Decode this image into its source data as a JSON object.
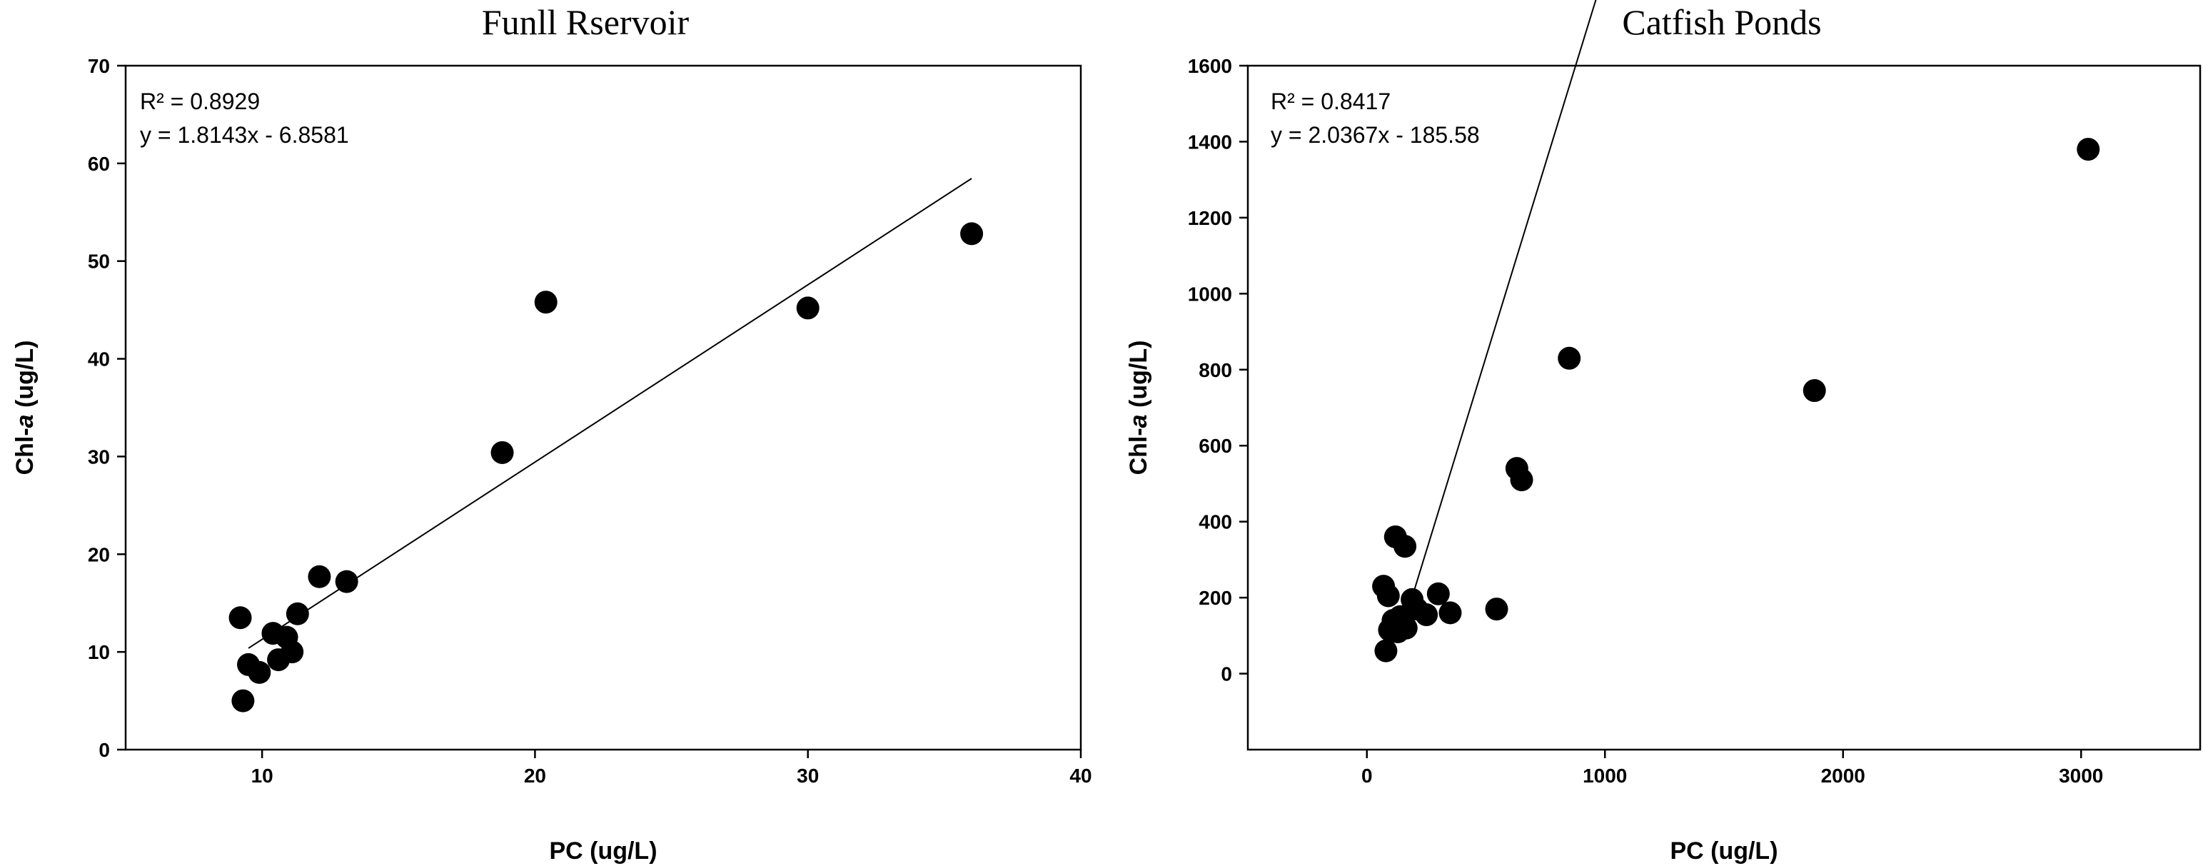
{
  "chart_data": [
    {
      "type": "scatter",
      "title": "Funll Rservoir",
      "xlabel": "PC (ug/L)",
      "ylabel_prefix": "Chl-",
      "ylabel_italic": "a",
      "ylabel_suffix": " (ug/L)",
      "xlim": [
        5,
        40
      ],
      "ylim": [
        0,
        70
      ],
      "xticks": [
        10,
        20,
        30,
        40
      ],
      "yticks": [
        0,
        10,
        20,
        30,
        40,
        50,
        60,
        70
      ],
      "grid": false,
      "annotations": [
        "R² = 0.8929",
        "y = 1.8143x - 6.8581"
      ],
      "trendline": {
        "slope": 1.8143,
        "intercept": -6.8581,
        "x_range": [
          9.5,
          36
        ]
      },
      "points": [
        {
          "x": 9.2,
          "y": 13.5
        },
        {
          "x": 9.3,
          "y": 5.0
        },
        {
          "x": 9.5,
          "y": 8.7
        },
        {
          "x": 9.9,
          "y": 7.9
        },
        {
          "x": 10.4,
          "y": 11.9
        },
        {
          "x": 10.6,
          "y": 9.2
        },
        {
          "x": 10.9,
          "y": 11.5
        },
        {
          "x": 11.1,
          "y": 10.0
        },
        {
          "x": 11.3,
          "y": 13.9
        },
        {
          "x": 12.1,
          "y": 17.7
        },
        {
          "x": 13.1,
          "y": 17.2
        },
        {
          "x": 18.8,
          "y": 30.4
        },
        {
          "x": 20.4,
          "y": 45.8
        },
        {
          "x": 30.0,
          "y": 45.2
        },
        {
          "x": 36.0,
          "y": 52.8
        }
      ]
    },
    {
      "type": "scatter",
      "title": "Catfish Ponds",
      "xlabel": "PC (ug/L)",
      "ylabel_prefix": "Chl-",
      "ylabel_italic": "a",
      "ylabel_suffix": " (ug/L)",
      "xlim": [
        -500,
        3500
      ],
      "ylim": [
        -200,
        1600
      ],
      "xticks": [
        0,
        1000,
        2000,
        3000
      ],
      "yticks": [
        0,
        200,
        400,
        600,
        800,
        1000,
        1200,
        1400,
        1600
      ],
      "grid": false,
      "annotations": [
        "R² = 0.8417",
        "y = 2.0367x - 185.58"
      ],
      "trendline": {
        "slope": 2.0367,
        "intercept": -185.58,
        "x_range": [
          200,
          3020
        ]
      },
      "points": [
        {
          "x": 70,
          "y": 230
        },
        {
          "x": 80,
          "y": 60
        },
        {
          "x": 90,
          "y": 205
        },
        {
          "x": 95,
          "y": 115
        },
        {
          "x": 110,
          "y": 140
        },
        {
          "x": 120,
          "y": 360
        },
        {
          "x": 130,
          "y": 110
        },
        {
          "x": 140,
          "y": 150
        },
        {
          "x": 160,
          "y": 335
        },
        {
          "x": 165,
          "y": 120
        },
        {
          "x": 190,
          "y": 195
        },
        {
          "x": 210,
          "y": 170
        },
        {
          "x": 250,
          "y": 155
        },
        {
          "x": 300,
          "y": 210
        },
        {
          "x": 350,
          "y": 160
        },
        {
          "x": 545,
          "y": 170
        },
        {
          "x": 630,
          "y": 540
        },
        {
          "x": 650,
          "y": 510
        },
        {
          "x": 850,
          "y": 830
        },
        {
          "x": 1880,
          "y": 745
        },
        {
          "x": 3030,
          "y": 1380
        }
      ]
    }
  ]
}
